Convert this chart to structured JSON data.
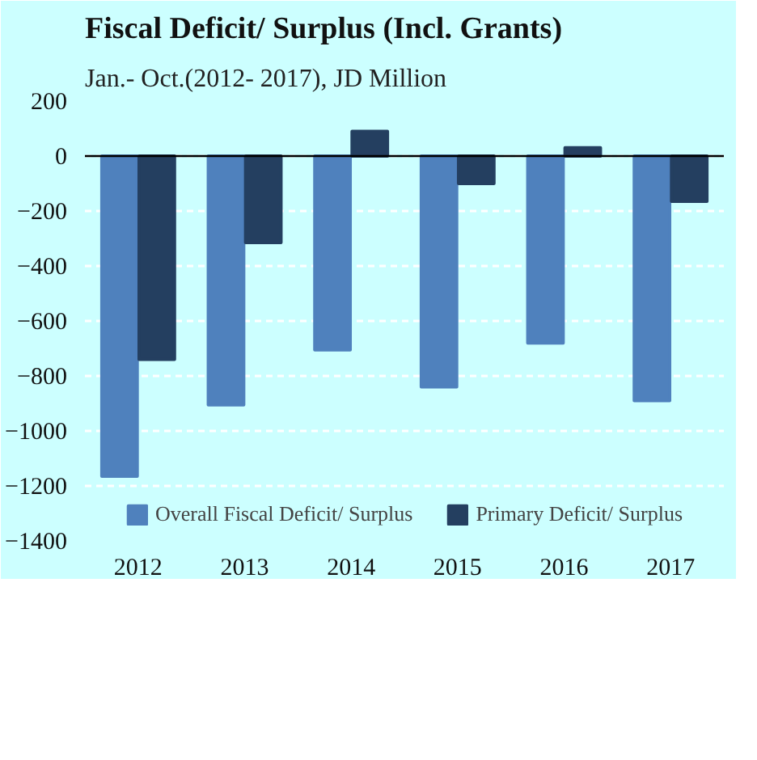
{
  "chart_data": {
    "type": "bar",
    "title": "Fiscal Deficit/ Surplus (Incl. Grants)",
    "subtitle": "Jan.- Oct.(2012- 2017), JD Million",
    "categories": [
      "2012",
      "2013",
      "2014",
      "2015",
      "2016",
      "2017"
    ],
    "series": [
      {
        "name": "Overall Fiscal Deficit/ Surplus",
        "color": "#4f81bd",
        "values": [
          -1165,
          -905,
          -705,
          -840,
          -680,
          -890
        ]
      },
      {
        "name": "Primary Deficit/ Surplus",
        "color": "#243f60",
        "values": [
          -740,
          -315,
          90,
          -100,
          30,
          -165
        ]
      }
    ],
    "ylim": [
      -1400,
      200
    ],
    "yticks": [
      -1400,
      -1200,
      -1000,
      -800,
      -600,
      -400,
      -200,
      0,
      200
    ],
    "grid": "y",
    "legend": "bottom"
  }
}
